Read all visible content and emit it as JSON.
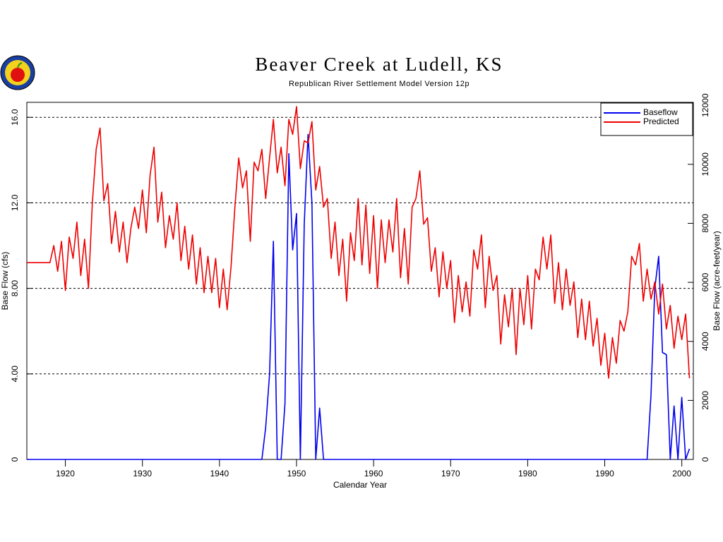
{
  "chart_data": {
    "type": "line",
    "title": "Beaver Creek at Ludell, KS",
    "subtitle": "Republican River Settlement Model Version 12p",
    "xlabel": "Calendar Year",
    "ylabel": "Base Flow (cfs)",
    "y2label": "Base Flow (acre-feet/year)",
    "xlim": [
      1915,
      2001.5
    ],
    "xticks": [
      1920,
      1930,
      1940,
      1950,
      1960,
      1970,
      1980,
      1990,
      2000
    ],
    "ylim": [
      0,
      16.7
    ],
    "yticks": [
      0,
      {
        "value": 4,
        "label": "4.00"
      },
      {
        "value": 8,
        "label": "8.00"
      },
      {
        "value": 12,
        "label": "12.0"
      },
      {
        "value": 16,
        "label": "16.0"
      }
    ],
    "y2lim": [
      0,
      12100
    ],
    "y2ticks": [
      0,
      2000,
      4000,
      6000,
      8000,
      10000,
      12000
    ],
    "grid": true,
    "legend": "upper right",
    "x": [
      1915,
      1915.5,
      1916,
      1916.5,
      1917,
      1917.5,
      1918,
      1918.5,
      1919,
      1919.5,
      1920,
      1920.5,
      1921,
      1921.5,
      1922,
      1922.5,
      1923,
      1923.5,
      1924,
      1924.5,
      1925,
      1925.5,
      1926,
      1926.5,
      1927,
      1927.5,
      1928,
      1928.5,
      1929,
      1929.5,
      1930,
      1930.5,
      1931,
      1931.5,
      1932,
      1932.5,
      1933,
      1933.5,
      1934,
      1934.5,
      1935,
      1935.5,
      1936,
      1936.5,
      1937,
      1937.5,
      1938,
      1938.5,
      1939,
      1939.5,
      1940,
      1940.5,
      1941,
      1941.5,
      1942,
      1942.5,
      1943,
      1943.5,
      1944,
      1944.5,
      1945,
      1945.5,
      1946,
      1946.5,
      1947,
      1947.5,
      1948,
      1948.5,
      1949,
      1949.5,
      1950,
      1950.5,
      1951,
      1951.5,
      1952,
      1952.5,
      1953,
      1953.5,
      1954,
      1954.5,
      1955,
      1955.5,
      1956,
      1956.5,
      1957,
      1957.5,
      1958,
      1958.5,
      1959,
      1959.5,
      1960,
      1960.5,
      1961,
      1961.5,
      1962,
      1962.5,
      1963,
      1963.5,
      1964,
      1964.5,
      1965,
      1965.5,
      1966,
      1966.5,
      1967,
      1967.5,
      1968,
      1968.5,
      1969,
      1969.5,
      1970,
      1970.5,
      1971,
      1971.5,
      1972,
      1972.5,
      1973,
      1973.5,
      1974,
      1974.5,
      1975,
      1975.5,
      1976,
      1976.5,
      1977,
      1977.5,
      1978,
      1978.5,
      1979,
      1979.5,
      1980,
      1980.5,
      1981,
      1981.5,
      1982,
      1982.5,
      1983,
      1983.5,
      1984,
      1984.5,
      1985,
      1985.5,
      1986,
      1986.5,
      1987,
      1987.5,
      1988,
      1988.5,
      1989,
      1989.5,
      1990,
      1990.5,
      1991,
      1991.5,
      1992,
      1992.5,
      1993,
      1993.5,
      1994,
      1994.5,
      1995,
      1995.5,
      1996,
      1996.5,
      1997,
      1997.5,
      1998,
      1998.5,
      1999,
      1999.5,
      2000,
      2000.5,
      2001
    ],
    "series": [
      {
        "name": "Baseflow",
        "color": "#0000ee",
        "values": [
          0,
          0,
          0,
          0,
          0,
          0,
          0,
          0,
          0,
          0,
          0,
          0,
          0,
          0,
          0,
          0,
          0,
          0,
          0,
          0,
          0,
          0,
          0,
          0,
          0,
          0,
          0,
          0,
          0,
          0,
          0,
          0,
          0,
          0,
          0,
          0,
          0,
          0,
          0,
          0,
          0,
          0,
          0,
          0,
          0,
          0,
          0,
          0,
          0,
          0,
          0,
          0,
          0,
          0,
          0,
          0,
          0,
          0,
          0,
          0,
          0,
          0,
          1.5,
          4.0,
          10.2,
          0,
          0,
          2.6,
          14.3,
          9.8,
          11.5,
          0,
          11.0,
          15.2,
          12.0,
          0,
          2.4,
          0,
          0,
          0,
          0,
          0,
          0,
          0,
          0,
          0,
          0,
          0,
          0,
          0,
          0,
          0,
          0,
          0,
          0,
          0,
          0,
          0,
          0,
          0,
          0,
          0,
          0,
          0,
          0,
          0,
          0,
          0,
          0,
          0,
          0,
          0,
          0,
          0,
          0,
          0,
          0,
          0,
          0,
          0,
          0,
          0,
          0,
          0,
          0,
          0,
          0,
          0,
          0,
          0,
          0,
          0,
          0,
          0,
          0,
          0,
          0,
          0,
          0,
          0,
          0,
          0,
          0,
          0,
          0,
          0,
          0,
          0,
          0,
          0,
          0,
          0,
          0,
          0,
          0,
          0,
          0,
          0,
          0,
          0,
          0,
          0,
          3.0,
          8.0,
          9.5,
          5.0,
          4.9,
          0,
          2.5,
          0,
          2.9,
          0,
          0.5
        ]
      },
      {
        "name": "Predicted",
        "color": "#ee0000",
        "values": [
          9.2,
          9.2,
          9.2,
          9.2,
          9.2,
          9.2,
          9.2,
          10.0,
          8.8,
          10.2,
          7.9,
          10.4,
          9.4,
          11.1,
          8.6,
          10.3,
          8.0,
          12.0,
          14.5,
          15.5,
          12.1,
          12.9,
          10.1,
          11.6,
          9.7,
          11.1,
          9.2,
          10.8,
          11.8,
          10.8,
          12.6,
          10.6,
          13.3,
          14.6,
          11.1,
          12.5,
          9.9,
          11.4,
          10.3,
          12.0,
          9.3,
          10.9,
          8.9,
          10.5,
          8.2,
          9.9,
          7.8,
          9.5,
          7.8,
          9.4,
          7.1,
          8.9,
          7.0,
          9.0,
          11.8,
          14.1,
          12.7,
          13.5,
          10.2,
          13.9,
          13.5,
          14.5,
          12.2,
          14.1,
          15.9,
          13.4,
          14.6,
          12.8,
          15.9,
          15.2,
          16.5,
          13.6,
          14.9,
          14.8,
          15.8,
          12.6,
          13.7,
          11.8,
          12.2,
          9.4,
          11.1,
          8.6,
          10.3,
          7.4,
          10.6,
          9.3,
          12.2,
          9.1,
          11.9,
          8.7,
          11.4,
          8.0,
          11.2,
          9.2,
          11.2,
          9.7,
          12.2,
          8.5,
          10.8,
          8.2,
          11.8,
          12.2,
          13.5,
          11.0,
          11.3,
          8.8,
          9.9,
          7.6,
          9.7,
          8.0,
          9.3,
          6.4,
          8.6,
          6.9,
          8.3,
          6.7,
          9.8,
          8.9,
          10.5,
          7.1,
          9.5,
          7.9,
          8.6,
          5.4,
          7.7,
          6.2,
          8.0,
          4.9,
          8.0,
          6.3,
          8.6,
          6.1,
          8.9,
          8.4,
          10.4,
          8.9,
          10.5,
          7.3,
          9.2,
          7.0,
          8.9,
          7.2,
          8.3,
          5.7,
          7.5,
          5.6,
          7.4,
          5.3,
          6.6,
          4.4,
          5.9,
          3.8,
          5.7,
          4.5,
          6.5,
          6.0,
          6.9,
          9.5,
          9.1,
          10.1,
          7.4,
          8.9,
          7.5,
          8.3,
          6.8,
          8.2,
          6.1,
          7.2,
          5.2,
          6.7,
          5.6,
          6.8,
          3.8
        ]
      }
    ]
  }
}
